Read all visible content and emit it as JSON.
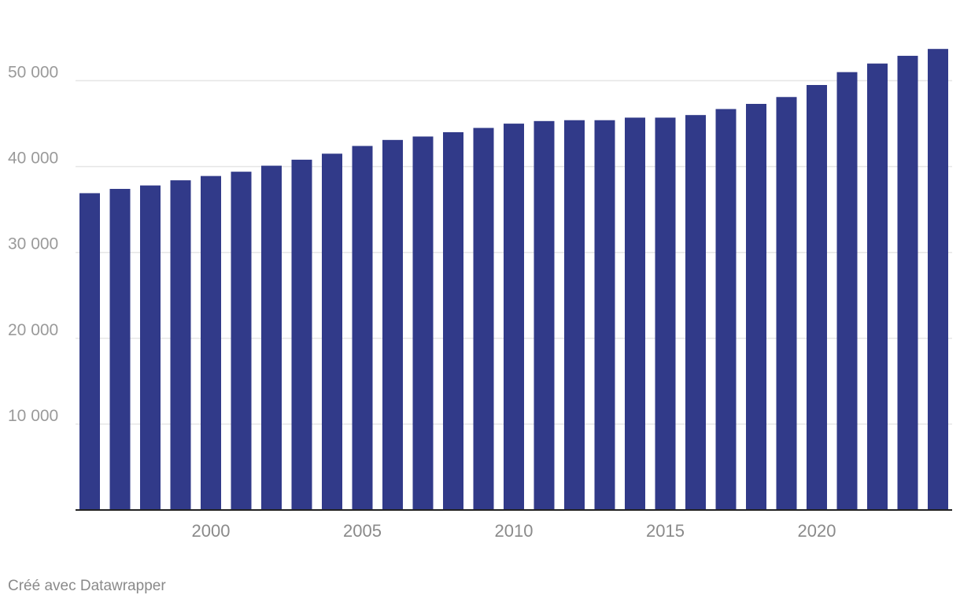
{
  "chart_data": {
    "type": "bar",
    "title": "",
    "xlabel": "",
    "ylabel": "",
    "x": [
      1996,
      1997,
      1998,
      1999,
      2000,
      2001,
      2002,
      2003,
      2004,
      2005,
      2006,
      2007,
      2008,
      2009,
      2010,
      2011,
      2012,
      2013,
      2014,
      2015,
      2016,
      2017,
      2018,
      2019,
      2020,
      2021,
      2022,
      2023,
      2024
    ],
    "values": [
      36900,
      37400,
      37800,
      38400,
      38900,
      39400,
      40100,
      40800,
      41500,
      42400,
      43100,
      43500,
      44000,
      44500,
      45000,
      45300,
      45400,
      45400,
      45700,
      45700,
      46000,
      46700,
      47300,
      48100,
      49500,
      51000,
      52000,
      52900,
      53700
    ],
    "ylim": [
      0,
      55000
    ],
    "y_ticks": [
      10000,
      20000,
      30000,
      40000,
      50000
    ],
    "y_tick_labels": [
      "10 000",
      "20 000",
      "30 000",
      "40 000",
      "50 000"
    ],
    "x_ticks": [
      2000,
      2005,
      2010,
      2015,
      2020
    ],
    "x_tick_labels": [
      "2000",
      "2005",
      "2010",
      "2015",
      "2020"
    ],
    "bar_color": "#313a89",
    "grid": true,
    "legend": "none"
  },
  "footer": {
    "credit": "Créé avec Datawrapper"
  }
}
